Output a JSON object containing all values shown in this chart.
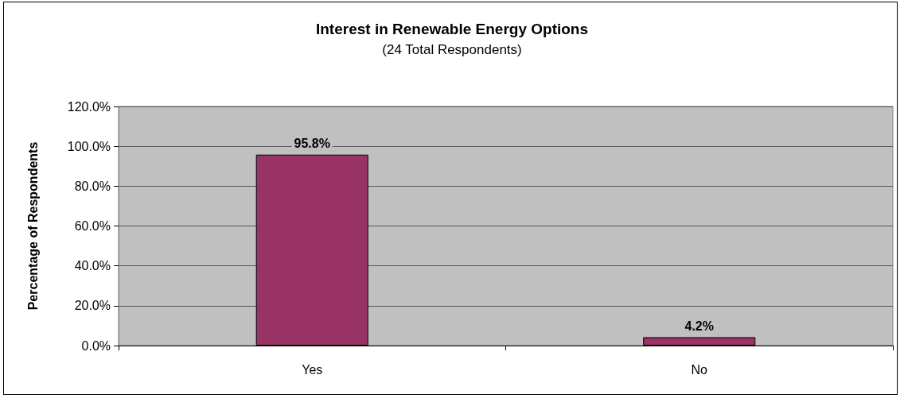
{
  "chart_data": {
    "type": "bar",
    "title": "Interest in Renewable Energy Options",
    "subtitle": "(24 Total Respondents)",
    "ylabel": "Percentage of Respondents",
    "categories": [
      "Yes",
      "No"
    ],
    "values": [
      95.8,
      4.2
    ],
    "color": "#993366",
    "value_labels": [
      "95.8%",
      "4.2%"
    ],
    "ylim": [
      0,
      120
    ],
    "yticks": [
      {
        "value": 0,
        "label": "0.0%"
      },
      {
        "value": 20,
        "label": "20.0%"
      },
      {
        "value": 40,
        "label": "40.0%"
      },
      {
        "value": 60,
        "label": "60.0%"
      },
      {
        "value": 80,
        "label": "80.0%"
      },
      {
        "value": 100,
        "label": "100.0%"
      },
      {
        "value": 120,
        "label": "120.0%"
      }
    ],
    "grid": "y"
  }
}
